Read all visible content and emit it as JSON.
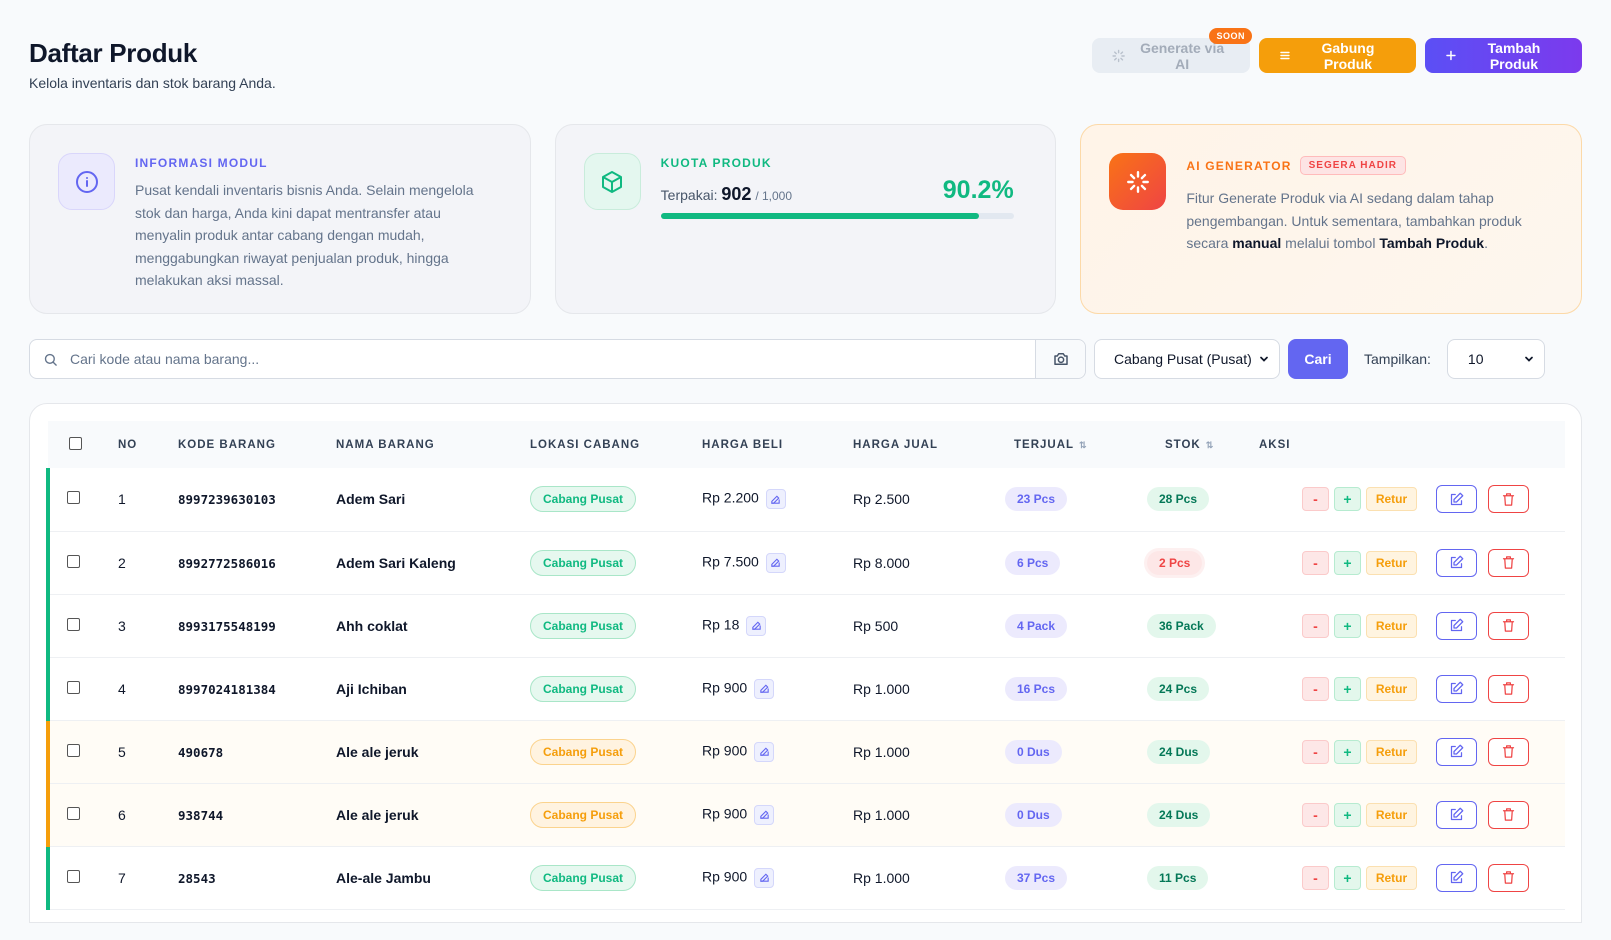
{
  "header": {
    "title": "Daftar Produk",
    "subtitle": "Kelola inventaris dan stok barang Anda.",
    "btn_ai": "Generate via AI",
    "btn_ai_badge": "SOON",
    "btn_merge": "Gabung Produk",
    "btn_add": "Tambah Produk"
  },
  "cards": {
    "info": {
      "label": "INFORMASI MODUL",
      "text": "Pusat kendali inventaris bisnis Anda. Selain mengelola stok dan harga, Anda kini dapat mentransfer atau menyalin produk antar cabang dengan mudah, menggabungkan riwayat penjualan produk, hingga melakukan aksi massal."
    },
    "quota": {
      "label": "KUOTA PRODUK",
      "used_label": "Terpakai:",
      "used": "902",
      "total": "/ 1,000",
      "percent_text": "90.2%",
      "percent": 90.2
    },
    "ai": {
      "label": "AI GENERATOR",
      "badge": "SEGERA HADIR",
      "text_1": "Fitur Generate Produk via AI sedang dalam tahap pengembangan. Untuk sementara, tambahkan produk secara ",
      "text_bold_1": "manual",
      "text_2": " melalui tombol ",
      "text_bold_2": "Tambah Produk",
      "text_3": "."
    }
  },
  "search": {
    "placeholder": "Cari kode atau nama barang...",
    "branch": "Cabang Pusat (Pusat)",
    "search_btn": "Cari",
    "show_label": "Tampilkan:",
    "show_value": "10"
  },
  "table": {
    "headers": [
      "NO",
      "KODE BARANG",
      "NAMA BARANG",
      "LOKASI CABANG",
      "HARGA BELI",
      "HARGA JUAL",
      "TERJUAL",
      "STOK",
      "AKSI"
    ],
    "retur_label": "Retur",
    "rows": [
      {
        "no": "1",
        "code": "8997239630103",
        "name": "Adem Sari",
        "loc": "Cabang Pusat",
        "buy": "Rp 2.200",
        "sell": "Rp 2.500",
        "sold": "23 Pcs",
        "stock": "28 Pcs",
        "warn": false,
        "low": false
      },
      {
        "no": "2",
        "code": "8992772586016",
        "name": "Adem Sari Kaleng",
        "loc": "Cabang Pusat",
        "buy": "Rp 7.500",
        "sell": "Rp 8.000",
        "sold": "6 Pcs",
        "stock": "2 Pcs",
        "warn": false,
        "low": true
      },
      {
        "no": "3",
        "code": "8993175548199",
        "name": "Ahh coklat",
        "loc": "Cabang Pusat",
        "buy": "Rp 18",
        "sell": "Rp 500",
        "sold": "4 Pack",
        "stock": "36 Pack",
        "warn": false,
        "low": false
      },
      {
        "no": "4",
        "code": "8997024181384",
        "name": "Aji Ichiban",
        "loc": "Cabang Pusat",
        "buy": "Rp 900",
        "sell": "Rp 1.000",
        "sold": "16 Pcs",
        "stock": "24 Pcs",
        "warn": false,
        "low": false
      },
      {
        "no": "5",
        "code": "490678",
        "name": "Ale ale jeruk",
        "loc": "Cabang Pusat",
        "buy": "Rp 900",
        "sell": "Rp 1.000",
        "sold": "0 Dus",
        "stock": "24 Dus",
        "warn": true,
        "low": false
      },
      {
        "no": "6",
        "code": "938744",
        "name": "Ale ale jeruk",
        "loc": "Cabang Pusat",
        "buy": "Rp 900",
        "sell": "Rp 1.000",
        "sold": "0 Dus",
        "stock": "24 Dus",
        "warn": true,
        "low": false
      },
      {
        "no": "7",
        "code": "28543",
        "name": "Ale-ale Jambu",
        "loc": "Cabang Pusat",
        "buy": "Rp 900",
        "sell": "Rp 1.000",
        "sold": "37 Pcs",
        "stock": "11 Pcs",
        "warn": false,
        "low": false
      }
    ]
  },
  "colors": {
    "accent": "#6366f1",
    "success": "#10b981",
    "warning": "#f59e0b",
    "danger": "#ef4444"
  }
}
